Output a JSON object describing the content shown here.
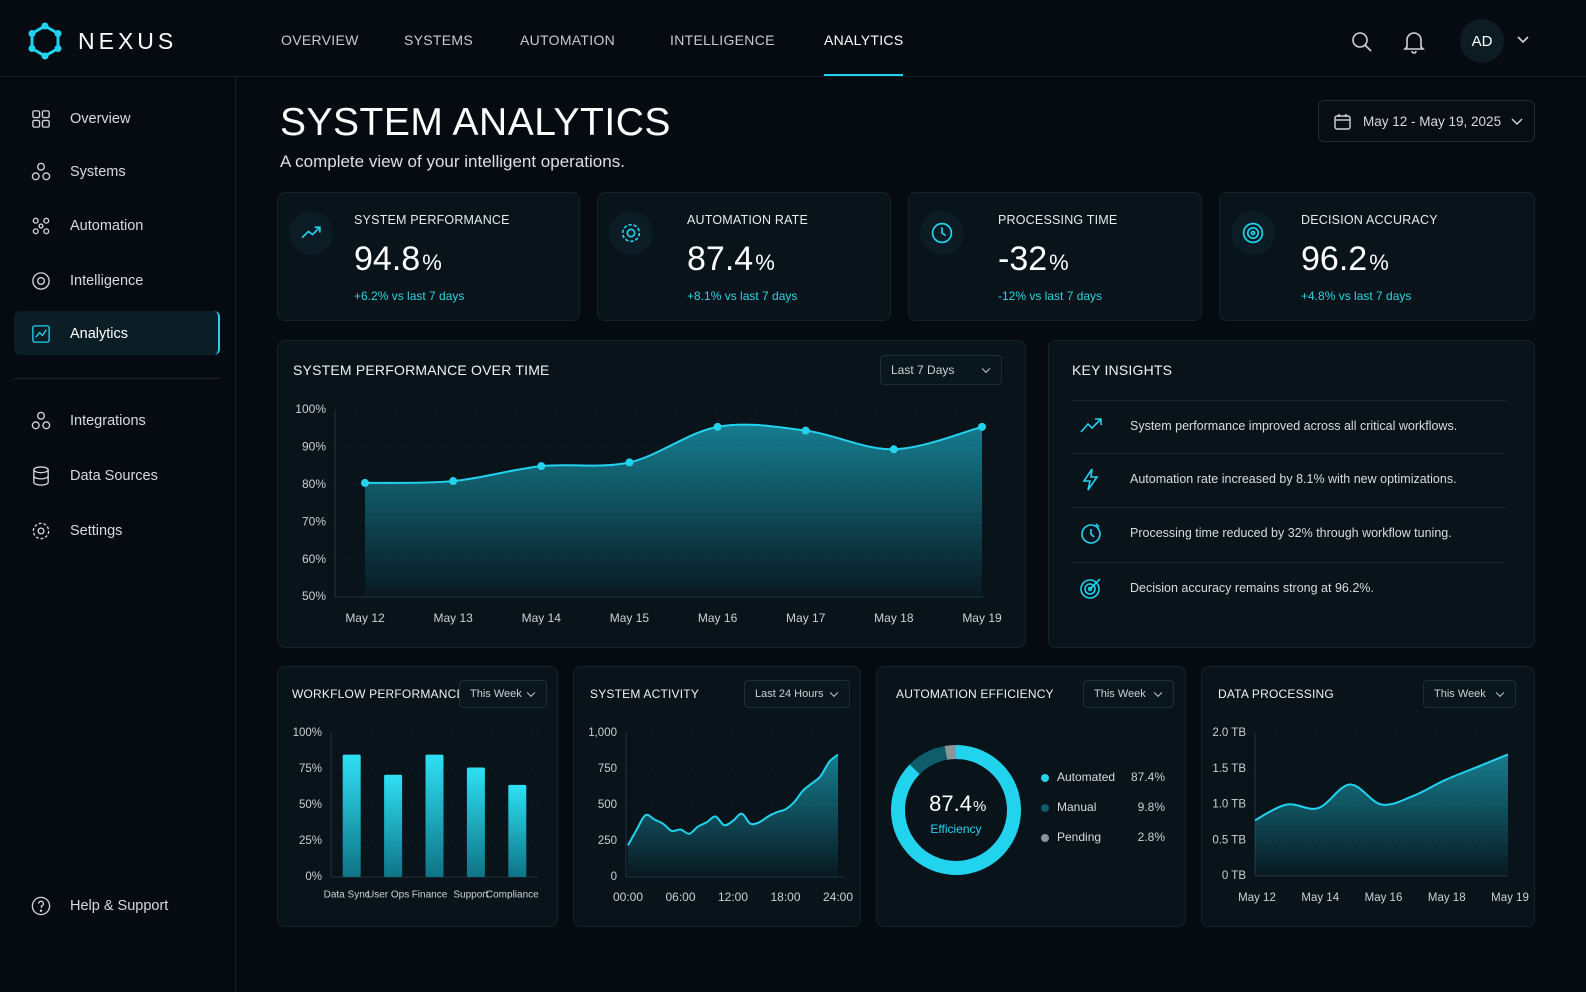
{
  "brand": "NEXUS",
  "top_nav": [
    "OVERVIEW",
    "SYSTEMS",
    "AUTOMATION",
    "INTELLIGENCE",
    "ANALYTICS"
  ],
  "user": "AD",
  "sidebar": {
    "primary": [
      "Overview",
      "Systems",
      "Automation",
      "Intelligence",
      "Analytics"
    ],
    "secondary": [
      "Integrations",
      "Data Sources",
      "Settings"
    ],
    "help": "Help & Support"
  },
  "header": {
    "title": "SYSTEM ANALYTICS",
    "subtitle": "A complete view of your intelligent operations.",
    "date_range": "May 12 - May 19, 2025"
  },
  "kpis": [
    {
      "label": "SYSTEM PERFORMANCE",
      "value": 94.8,
      "unit": "%",
      "change": "+6.2% vs last 7 days"
    },
    {
      "label": "AUTOMATION RATE",
      "value": 87.4,
      "unit": "%",
      "change": "+8.1% vs last 7 days"
    },
    {
      "label": "PROCESSING TIME",
      "value": -32,
      "unit": "%",
      "change": "-12% vs last 7 days"
    },
    {
      "label": "DECISION ACCURACY",
      "value": 96.2,
      "unit": "%",
      "change": "+4.8% vs last 7 days"
    }
  ],
  "insights": {
    "title": "KEY INSIGHTS",
    "items": [
      "System performance improved across all critical workflows.",
      "Automation rate increased by 8.1% with new optimizations.",
      "Processing time reduced by 32% through workflow tuning.",
      "Decision accuracy remains strong at 96.2%."
    ]
  },
  "chart_data": [
    {
      "type": "area",
      "title": "SYSTEM PERFORMANCE OVER TIME",
      "filter": "Last 7 Days",
      "categories": [
        "May 12",
        "May 13",
        "May 14",
        "May 15",
        "May 16",
        "May 17",
        "May 18",
        "May 19"
      ],
      "values": [
        80.5,
        81,
        85,
        86,
        95.5,
        94.5,
        89.5,
        95.5
      ],
      "color": "#22d3ee",
      "ylim": [
        50,
        100
      ],
      "yticks": [
        {
          "value": 50,
          "label": "50%"
        },
        {
          "value": 60,
          "label": "60%"
        },
        {
          "value": 70,
          "label": "70%"
        },
        {
          "value": 80,
          "label": "80%"
        },
        {
          "value": 90,
          "label": "90%"
        },
        {
          "value": 100,
          "label": "100%"
        }
      ],
      "grid": true,
      "markers": true
    },
    {
      "type": "bar",
      "title": "WORKFLOW PERFORMANCE",
      "filter": "This Week",
      "categories": [
        "Data Sync",
        "User Ops",
        "Finance",
        "Support",
        "Compliance"
      ],
      "values": [
        85,
        71,
        85,
        76,
        64
      ],
      "color": "#22d3ee",
      "ylim": [
        0,
        100
      ],
      "yticks": [
        {
          "value": 0,
          "label": "0%"
        },
        {
          "value": 25,
          "label": "25%"
        },
        {
          "value": 50,
          "label": "50%"
        },
        {
          "value": 75,
          "label": "75%"
        },
        {
          "value": 100,
          "label": "100%"
        }
      ],
      "grid": true
    },
    {
      "type": "area",
      "title": "SYSTEM ACTIVITY",
      "filter": "Last 24 Hours",
      "x": [
        0,
        1,
        2,
        3,
        4,
        5,
        6,
        7,
        8,
        9,
        10,
        11,
        12,
        13,
        14,
        15,
        16,
        17,
        18,
        19,
        20,
        21,
        22,
        23,
        24
      ],
      "values": [
        220,
        330,
        430,
        400,
        370,
        320,
        330,
        300,
        350,
        380,
        420,
        360,
        390,
        440,
        370,
        380,
        420,
        450,
        470,
        520,
        600,
        650,
        700,
        800,
        850
      ],
      "color": "#22d3ee",
      "xlim": [
        0,
        24
      ],
      "xticks": [
        {
          "value": 0,
          "label": "00:00"
        },
        {
          "value": 6,
          "label": "06:00"
        },
        {
          "value": 12,
          "label": "12:00"
        },
        {
          "value": 18,
          "label": "18:00"
        },
        {
          "value": 24,
          "label": "24:00"
        }
      ],
      "ylim": [
        0,
        1000
      ],
      "yticks": [
        0,
        250,
        500,
        750,
        {
          "value": 1000,
          "label": "1,000"
        }
      ],
      "grid": true,
      "markers": false
    },
    {
      "type": "donut",
      "title": "AUTOMATION EFFICIENCY",
      "filter": "This Week",
      "center_value": 87.4,
      "center_unit": "%",
      "center_label": "Efficiency",
      "categories": [
        "Automated",
        "Manual",
        "Pending"
      ],
      "values": [
        87.4,
        9.8,
        2.8
      ],
      "value_labels": [
        "87.4%",
        "9.8%",
        "2.8%"
      ],
      "colors": [
        "#22d3ee",
        "#0f5c6b",
        "#8a949b"
      ]
    },
    {
      "type": "area",
      "title": "DATA PROCESSING",
      "filter": "This Week",
      "categories": [
        "May 12",
        null,
        "May 14",
        null,
        "May 16",
        null,
        "May 18",
        null,
        "May 19"
      ],
      "values": [
        0.78,
        1.0,
        0.95,
        1.28,
        1.0,
        1.12,
        1.34,
        1.52,
        1.7
      ],
      "color": "#22d3ee",
      "ylim": [
        0,
        2
      ],
      "yticks": [
        {
          "value": 0,
          "label": "0 TB"
        },
        {
          "value": 0.5,
          "label": "0.5 TB"
        },
        {
          "value": 1,
          "label": "1.0 TB"
        },
        {
          "value": 1.5,
          "label": "1.5 TB"
        },
        {
          "value": 2,
          "label": "2.0 TB"
        }
      ],
      "grid": true,
      "markers": false
    }
  ]
}
